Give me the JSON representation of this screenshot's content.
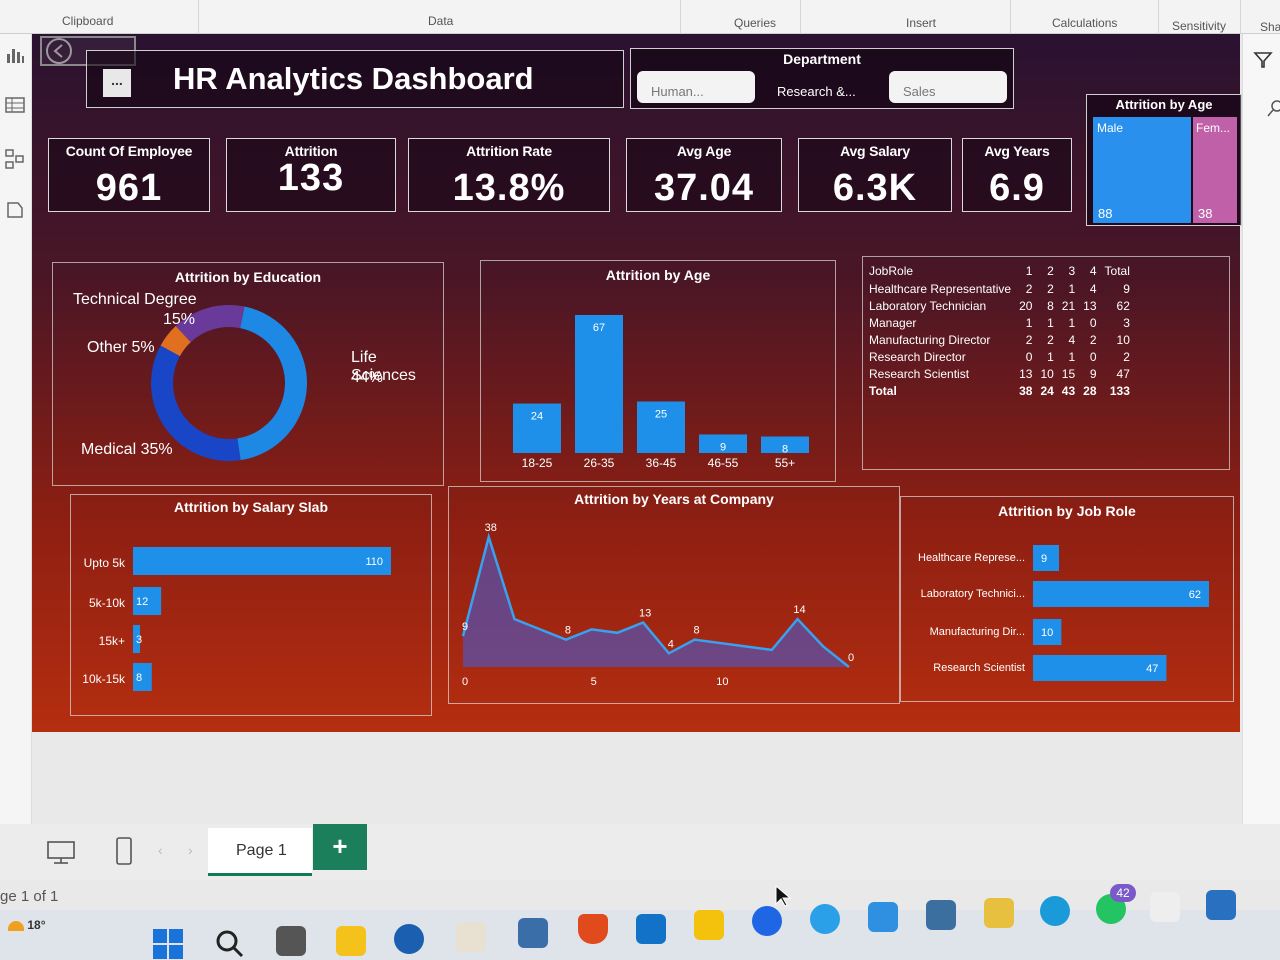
{
  "ribbon": {
    "groups": [
      "Clipboard",
      "Data",
      "Queries",
      "Insert",
      "Calculations",
      "Sensitivity",
      "Sha"
    ]
  },
  "dashboard": {
    "title": "HR Analytics Dashboard",
    "more_label": "...",
    "department": {
      "label": "Department",
      "options": [
        "Human...",
        "Research &...",
        "Sales"
      ]
    },
    "kpis": [
      {
        "label": "Count Of Employee",
        "value": "961"
      },
      {
        "label": "Attrition",
        "value": "133"
      },
      {
        "label": "Attrition Rate",
        "value": "13.8%"
      },
      {
        "label": "Avg Age",
        "value": "37.04"
      },
      {
        "label": "Avg Salary",
        "value": "6.3K"
      },
      {
        "label": "Avg Years",
        "value": "6.9"
      }
    ],
    "gender": {
      "title": "Attrition by Age",
      "male_label": "Male",
      "male_value": "88",
      "female_label": "Fem...",
      "female_value": "38"
    },
    "education": {
      "title": "Attrition by Education",
      "labels": {
        "tech": "Technical Degree",
        "tech_pct": "15%",
        "other": "Other 5%",
        "life": "Life Sciences",
        "life_pct": "44%",
        "medical": "Medical 35%"
      }
    },
    "age_chart": {
      "title": "Attrition by Age"
    },
    "matrix": {
      "header": [
        "JobRole",
        "1",
        "2",
        "3",
        "4",
        "Total"
      ],
      "rows": [
        [
          "Healthcare Representative",
          "2",
          "2",
          "1",
          "4",
          "9"
        ],
        [
          "Laboratory Technician",
          "20",
          "8",
          "21",
          "13",
          "62"
        ],
        [
          "Manager",
          "1",
          "1",
          "1",
          "0",
          "3"
        ],
        [
          "Manufacturing Director",
          "2",
          "2",
          "4",
          "2",
          "10"
        ],
        [
          "Research Director",
          "0",
          "1",
          "1",
          "0",
          "2"
        ],
        [
          "Research Scientist",
          "13",
          "10",
          "15",
          "9",
          "47"
        ],
        [
          "Total",
          "38",
          "24",
          "43",
          "28",
          "133"
        ]
      ]
    },
    "salary_chart": {
      "title": "Attrition by Salary Slab"
    },
    "years_chart": {
      "title": "Attrition by Years at Company"
    },
    "jobrole_chart": {
      "title": "Attrition by Job Role"
    }
  },
  "chart_data": [
    {
      "type": "pie",
      "title": "Attrition by Education",
      "categories": [
        "Life Sciences",
        "Medical",
        "Other",
        "Technical Degree"
      ],
      "values": [
        44,
        35,
        5,
        15
      ],
      "colors": [
        "#1e88e5",
        "#1846c6",
        "#e07020",
        "#6a3a9a"
      ]
    },
    {
      "type": "bar",
      "title": "Attrition by Age",
      "categories": [
        "18-25",
        "26-35",
        "36-45",
        "46-55",
        "55+"
      ],
      "values": [
        24,
        67,
        25,
        9,
        8
      ]
    },
    {
      "type": "bar",
      "title": "Attrition by Salary Slab",
      "orientation": "horizontal",
      "categories": [
        "Upto 5k",
        "5k-10k",
        "15k+",
        "10k-15k"
      ],
      "values": [
        110,
        12,
        3,
        8
      ]
    },
    {
      "type": "area",
      "title": "Attrition by Years at Company",
      "x": [
        0,
        1,
        2,
        3,
        4,
        5,
        6,
        7,
        8,
        9,
        10,
        11,
        12,
        13,
        14,
        15
      ],
      "values": [
        9,
        38,
        14,
        11,
        8,
        11,
        10,
        13,
        4,
        8,
        7,
        6,
        5,
        14,
        6,
        0
      ],
      "point_labels": {
        "0": "9",
        "1": "38",
        "4": "8",
        "7": "13",
        "8": "4",
        "9": "8",
        "13": "14",
        "15": "0"
      },
      "x_ticks": [
        "0",
        "5",
        "10"
      ]
    },
    {
      "type": "bar",
      "title": "Attrition by Job Role",
      "orientation": "horizontal",
      "categories": [
        "Healthcare Represe...",
        "Laboratory Technici...",
        "Manufacturing Dir...",
        "Research Scientist"
      ],
      "values": [
        9,
        62,
        10,
        47
      ]
    }
  ],
  "footer": {
    "page_tab": "Page 1",
    "add_label": "+",
    "page_status": "ge 1 of 1",
    "weather": "18°",
    "badge": "42"
  }
}
